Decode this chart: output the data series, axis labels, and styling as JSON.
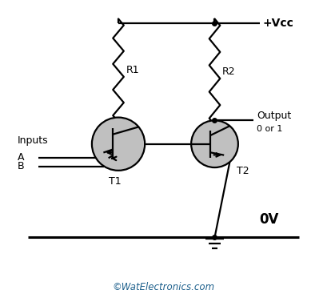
{
  "bg_color": "#ffffff",
  "line_color": "#000000",
  "transistor_fill": "#c0c0c0",
  "transistor_edge": "#000000",
  "vcc_label": "+Vcc",
  "ov_label": "0V",
  "r1_label": "R1",
  "r2_label": "R2",
  "t1_label": "T1",
  "t2_label": "T2",
  "inputs_label": "Inputs",
  "a_label": "A",
  "b_label": "B",
  "output_label": "Output",
  "output_sub": "0 or 1",
  "watermark": "©WatElectronics.com",
  "watermark_color": "#1f618d",
  "fig_width": 4.09,
  "fig_height": 3.82,
  "dpi": 100
}
